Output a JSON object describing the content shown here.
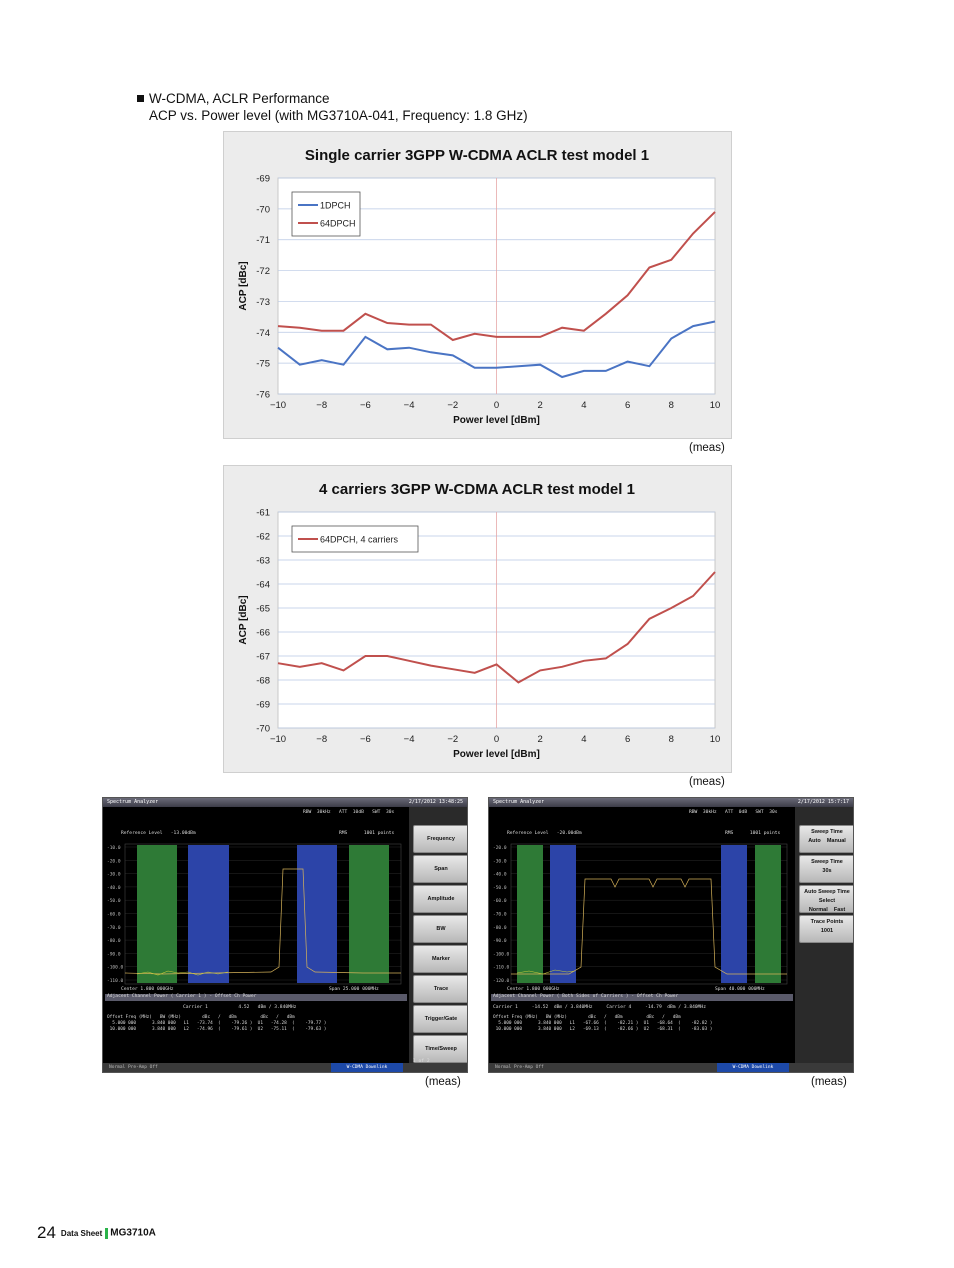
{
  "heading": {
    "line1": "W-CDMA, ACLR Performance",
    "line2": "ACP vs. Power level (with MG3710A-041, Frequency: 1.8 GHz)"
  },
  "captions": {
    "chart1": "(meas)",
    "chart2": "(meas)",
    "shot1": "(meas)",
    "shot2": "(meas)"
  },
  "chart_data": [
    {
      "type": "line",
      "title": "Single carrier 3GPP W-CDMA ACLR test model 1",
      "xlabel": "Power level [dBm]",
      "ylabel": "ACP [dBc]",
      "xlim": [
        -10,
        10
      ],
      "ylim": [
        -76,
        -69
      ],
      "xticks": [
        "-10",
        "-8",
        "-6",
        "-4",
        "-2",
        "0",
        "2",
        "4",
        "6",
        "8",
        "10"
      ],
      "yticks": [
        "-69",
        "-70",
        "-71",
        "-72",
        "-73",
        "-74",
        "-75",
        "-76"
      ],
      "grid": "horizontal",
      "legend": "top-left",
      "series": [
        {
          "name": "1DPCH",
          "color": "#4a74c4",
          "x": [
            -10,
            -9,
            -8,
            -7,
            -6,
            -5,
            -4,
            -3,
            -2,
            -1,
            0,
            1,
            2,
            3,
            4,
            5,
            6,
            7,
            8,
            9,
            10
          ],
          "y": [
            -74.5,
            -75.05,
            -74.9,
            -75.05,
            -74.15,
            -74.55,
            -74.5,
            -74.65,
            -74.75,
            -75.15,
            -75.15,
            -75.1,
            -75.05,
            -75.45,
            -75.25,
            -75.25,
            -74.95,
            -75.1,
            -74.2,
            -73.8,
            -73.65
          ]
        },
        {
          "name": "64DPCH",
          "color": "#c0504d",
          "x": [
            -10,
            -9,
            -8,
            -7,
            -6,
            -5,
            -4,
            -3,
            -2,
            -1,
            0,
            1,
            2,
            3,
            4,
            5,
            6,
            7,
            8,
            9,
            10
          ],
          "y": [
            -73.8,
            -73.85,
            -73.95,
            -73.95,
            -73.4,
            -73.7,
            -73.75,
            -73.75,
            -74.25,
            -74.05,
            -74.15,
            -74.15,
            -74.15,
            -73.85,
            -73.95,
            -73.4,
            -72.8,
            -71.9,
            -71.65,
            -70.8,
            -70.1
          ]
        }
      ]
    },
    {
      "type": "line",
      "title": "4 carriers 3GPP W-CDMA ACLR test model 1",
      "xlabel": "Power level [dBm]",
      "ylabel": "ACP [dBc]",
      "xlim": [
        -10,
        10
      ],
      "ylim": [
        -70,
        -61
      ],
      "xticks": [
        "-10",
        "-8",
        "-6",
        "-4",
        "-2",
        "0",
        "2",
        "4",
        "6",
        "8",
        "10"
      ],
      "yticks": [
        "-61",
        "-62",
        "-63",
        "-64",
        "-65",
        "-66",
        "-67",
        "-68",
        "-69",
        "-70"
      ],
      "grid": "horizontal",
      "legend": "top-left",
      "series": [
        {
          "name": "64DPCH, 4 carriers",
          "color": "#c0504d",
          "x": [
            -10,
            -9,
            -8,
            -7,
            -6,
            -5,
            -4,
            -3,
            -2,
            -1,
            0,
            1,
            2,
            3,
            4,
            5,
            6,
            7,
            8,
            9,
            10
          ],
          "y": [
            -67.3,
            -67.45,
            -67.3,
            -67.6,
            -67.0,
            -67.0,
            -67.2,
            -67.4,
            -67.55,
            -67.7,
            -67.35,
            -68.1,
            -67.6,
            -67.45,
            -67.2,
            -67.1,
            -66.5,
            -65.45,
            -65.0,
            -64.5,
            -63.5
          ]
        }
      ]
    }
  ],
  "screens": [
    {
      "title": "Spectrum Analyzer",
      "datetime": "2/17/2012 13:48:25",
      "status": "RBW  30kHz   ATT  10dB   SWT  30s",
      "ref_level": "Reference Level   -13.00dBm",
      "rms": "RMS      1001 points",
      "yticks": [
        "-10.0",
        "-20.0",
        "-30.0",
        "-40.0",
        "-50.0",
        "-60.0",
        "-70.0",
        "-80.0",
        "-90.0",
        "-100.0",
        "-110.0"
      ],
      "center": "Center 1.800 000GHz",
      "span": "Span 25.000 000MHz",
      "result_title": "Adjacent Channel Power ( Carrier 1 ) - Offset Ch Power",
      "carrier": "Carrier 1           4.52   dBm / 3.840MHz",
      "table": "Offset Freq (MHz)   BW (MHz)        dBc   /   dBm         dBc   /   dBm\n  5.000 000      3.840 000   L1   -73.74  (    -79.26 )  U1   -74.28  (    -79.77 )\n 10.000 000      3.840 000   L2   -74.96  (    -79.61 )  U2   -75.11  (    -79.63 )",
      "status_left": "Normal       Pre-Amp Off",
      "status_right": "W-CDMA Downlink",
      "softkeys": [
        "Frequency",
        "Span",
        "Amplitude",
        "BW",
        "Marker",
        "Trace",
        "Trigger/Gate",
        "Time/Sweep"
      ],
      "page": "1 of 2"
    },
    {
      "title": "Spectrum Analyzer",
      "datetime": "2/17/2012 15:7:17",
      "status": "RBW  30kHz   ATT  0dB   SWT  30s",
      "ref_level": "Reference Level   -20.00dBm",
      "rms": "RMS      1001 points",
      "yticks": [
        "-20.0",
        "-30.0",
        "-40.0",
        "-50.0",
        "-60.0",
        "-70.0",
        "-80.0",
        "-90.0",
        "-100.0",
        "-110.0",
        "-120.0"
      ],
      "center": "Center 1.800 000GHz",
      "span": "Span 40.000 000MHz",
      "result_title": "Adjacent Channel Power ( Both Sides of Carriers ) - Offset Ch Power",
      "carrier": "Carrier 1     -14.52  dBm / 3.840MHz     Carrier 4     -14.79  dBm / 3.840MHz",
      "table": "Offset Freq (MHz)   BW (MHz)        dBc   /   dBm         dBc   /   dBm\n  5.000 000      3.840 000   L1   -67.66  (    -82.21 )  U1   -68.64  (    -82.82 )\n 10.000 000      3.840 000   L2   -69.13  (    -82.66 )  U2   -68.31  (    -83.03 )",
      "status_left": "Normal       Pre-Amp Off",
      "status_right": "W-CDMA Downlink",
      "softkeys": [
        "Sweep Time\nAuto    Manual",
        "Sweep Time\n30s",
        "Auto Sweep Time\nSelect\nNormal    Fast",
        "Trace Points\n1001"
      ],
      "page": ""
    }
  ],
  "footer": {
    "page_number": "24",
    "doc_type": "Data Sheet",
    "model": "MG3710A"
  }
}
